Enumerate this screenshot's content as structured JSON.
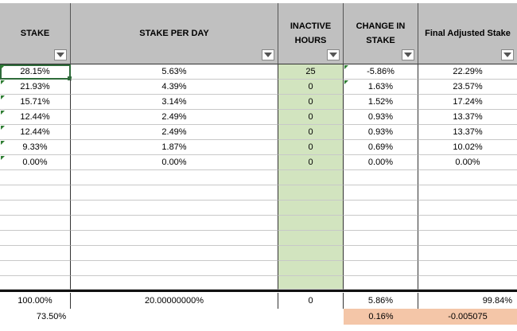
{
  "headers": {
    "stake": "STAKE",
    "stake_per_day": "STAKE PER DAY",
    "inactive_hours": "INACTIVE HOURS",
    "change_in_stake": "CHANGE IN STAKE",
    "final_adjusted_stake": "Final Adjusted Stake"
  },
  "rows": [
    {
      "stake": "28.15%",
      "stake_per_day": "5.63%",
      "inactive_hours": "25",
      "change": "-5.86%",
      "final": "22.29%"
    },
    {
      "stake": "21.93%",
      "stake_per_day": "4.39%",
      "inactive_hours": "0",
      "change": "1.63%",
      "final": "23.57%"
    },
    {
      "stake": "15.71%",
      "stake_per_day": "3.14%",
      "inactive_hours": "0",
      "change": "1.52%",
      "final": "17.24%"
    },
    {
      "stake": "12.44%",
      "stake_per_day": "2.49%",
      "inactive_hours": "0",
      "change": "0.93%",
      "final": "13.37%"
    },
    {
      "stake": "12.44%",
      "stake_per_day": "2.49%",
      "inactive_hours": "0",
      "change": "0.93%",
      "final": "13.37%"
    },
    {
      "stake": "9.33%",
      "stake_per_day": "1.87%",
      "inactive_hours": "0",
      "change": "0.69%",
      "final": "10.02%"
    },
    {
      "stake": "0.00%",
      "stake_per_day": "0.00%",
      "inactive_hours": "0",
      "change": "0.00%",
      "final": "0.00%"
    }
  ],
  "totals": {
    "stake": "100.00%",
    "stake_per_day": "20.00000000%",
    "inactive_hours": "0",
    "change": "5.86%",
    "final": "99.84%"
  },
  "extra": {
    "stake": "73.50%",
    "change": "0.16%",
    "final": "-0.005075"
  },
  "colors": {
    "header_bg": "#c0c0c0",
    "inactive_col_bg": "#d2e4bf",
    "highlight_bg": "#f4c6a8",
    "selection": "#2e6b3a"
  }
}
